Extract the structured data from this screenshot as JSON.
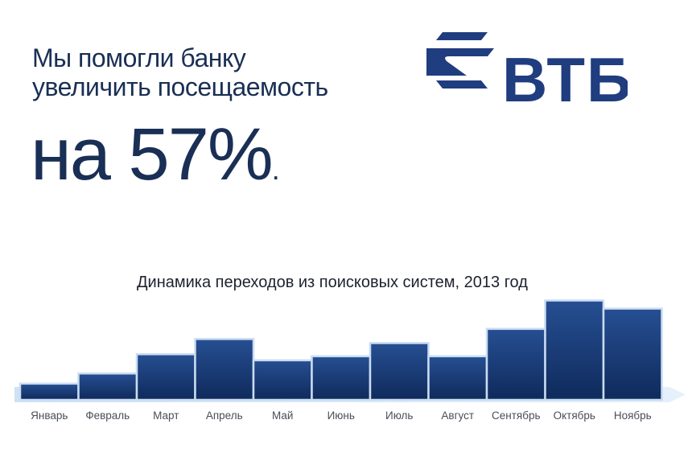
{
  "headline": {
    "line1": "Мы помогли банку",
    "line2": "увеличить посещаемость"
  },
  "stat": {
    "prefix": "на",
    "value": "57%",
    "suffix": "."
  },
  "logo": {
    "text": "ВТБ",
    "color": "#1f3d7f",
    "icon": "vtb-logo-icon"
  },
  "colors": {
    "bar_top": "#264f92",
    "bar_bottom": "#0f2a5c",
    "bar_outline": "#c9dcf2",
    "axis_band": "#cfe2f6",
    "text_dark": "#1a2f55"
  },
  "chart_data": {
    "type": "bar",
    "title": "Динамика переходов из поисковых систем, 2013 год",
    "categories": [
      "Январь",
      "Февраль",
      "Март",
      "Апрель",
      "Май",
      "Июнь",
      "Июль",
      "Август",
      "Сентябрь",
      "Октябрь",
      "Ноябрь"
    ],
    "values": [
      16,
      26,
      45,
      60,
      39,
      43,
      56,
      43,
      70,
      98,
      90
    ],
    "ylim": [
      0,
      100
    ],
    "xlabel": "",
    "ylabel": "",
    "grid": false,
    "legend": "none"
  }
}
